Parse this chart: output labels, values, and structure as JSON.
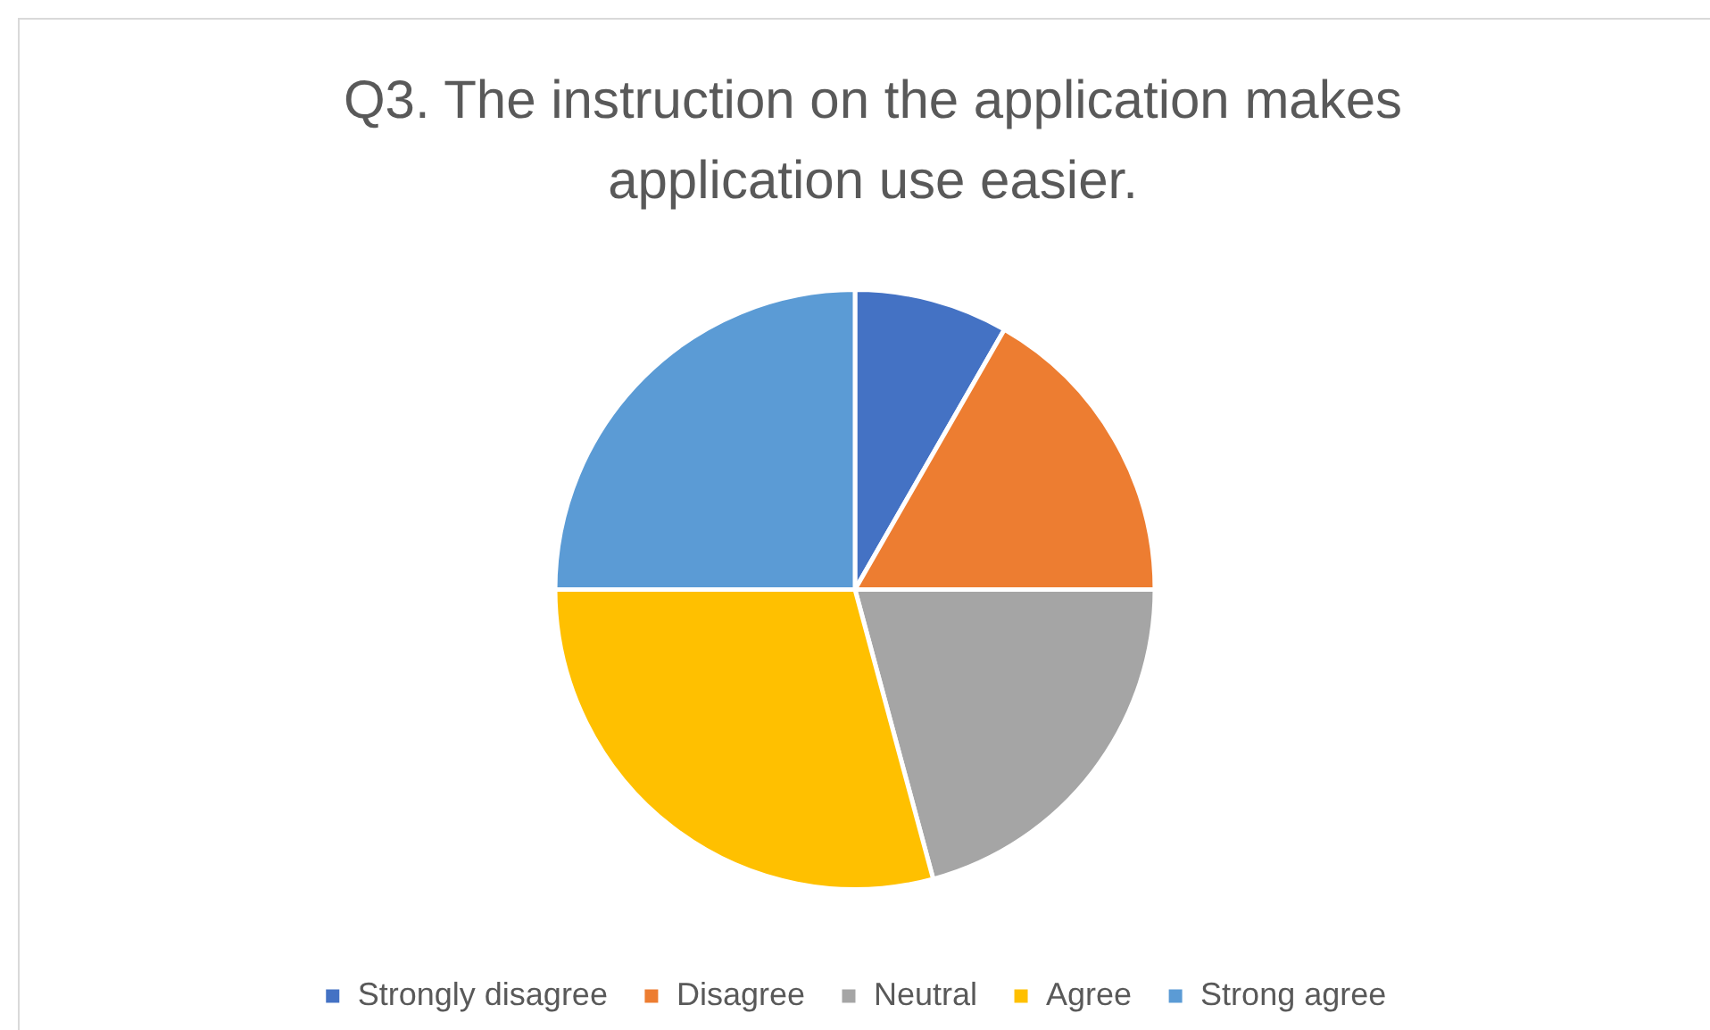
{
  "chart_data": {
    "type": "pie",
    "title": "Q3. The instruction on the application makes application use easier.",
    "categories": [
      "Strongly disagree",
      "Disagree",
      "Neutral",
      "Agree",
      "Strong agree"
    ],
    "values": [
      8.3,
      16.7,
      20.8,
      29.2,
      25
    ],
    "colors": [
      "#4472c4",
      "#ed7d31",
      "#a5a5a5",
      "#ffc000",
      "#5b9bd5"
    ],
    "legend": "bottom"
  }
}
